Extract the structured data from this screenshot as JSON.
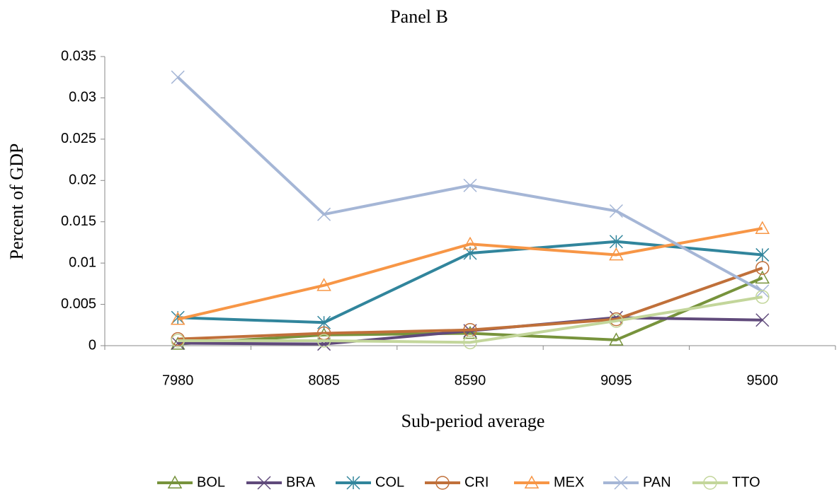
{
  "chart_data": {
    "type": "line",
    "title": "Panel B",
    "x_label": "Sub-period average",
    "y_label": "Percent of GDP",
    "categories": [
      "7980",
      "8085",
      "8590",
      "9095",
      "9500"
    ],
    "ylim": [
      0,
      0.035
    ],
    "yticks": [
      0,
      0.005,
      0.01,
      0.015,
      0.02,
      0.025,
      0.03,
      0.035
    ],
    "legend": "bottom",
    "series": [
      {
        "name": "BOL",
        "color": "#77933c",
        "marker": "triangle",
        "values": [
          0.0002,
          0.0013,
          0.0015,
          0.0007,
          0.0082
        ]
      },
      {
        "name": "BRA",
        "color": "#604a7b",
        "marker": "x",
        "values": [
          0.0003,
          0.0002,
          0.0018,
          0.0034,
          0.0031
        ]
      },
      {
        "name": "COL",
        "color": "#31859c",
        "marker": "star",
        "values": [
          0.0034,
          0.0028,
          0.0112,
          0.0126,
          0.011
        ]
      },
      {
        "name": "CRI",
        "color": "#c0703a",
        "marker": "circle",
        "values": [
          0.0008,
          0.0015,
          0.0019,
          0.0032,
          0.0094
        ]
      },
      {
        "name": "MEX",
        "color": "#f79646",
        "marker": "triangle",
        "values": [
          0.0032,
          0.0073,
          0.0123,
          0.011,
          0.0142
        ]
      },
      {
        "name": "PAN",
        "color": "#a5b6d6",
        "marker": "x",
        "values": [
          0.0325,
          0.0159,
          0.0194,
          0.0163,
          0.0066
        ]
      },
      {
        "name": "TTO",
        "color": "#c3d69b",
        "marker": "circle",
        "values": [
          0.0006,
          0.0006,
          0.0004,
          0.003,
          0.0059
        ]
      }
    ]
  }
}
